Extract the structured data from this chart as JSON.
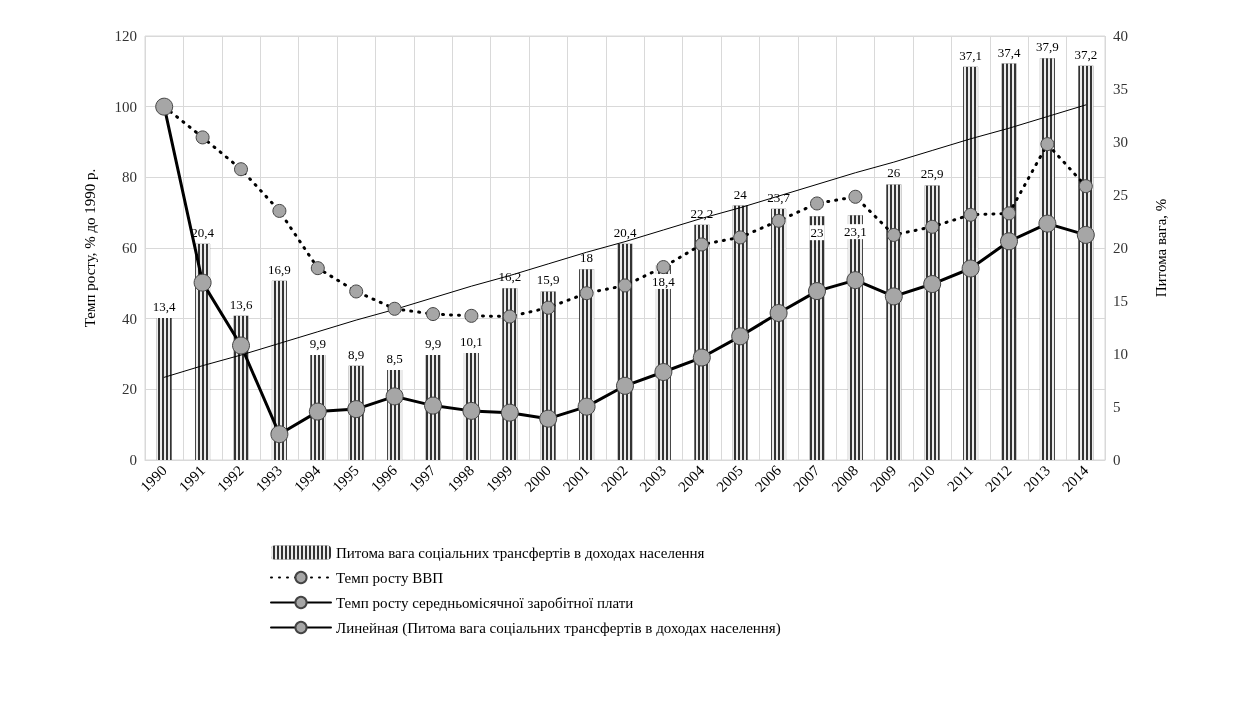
{
  "chart_data": {
    "type": "bar",
    "categories": [
      "1990",
      "1991",
      "1992",
      "1993",
      "1994",
      "1995",
      "1996",
      "1997",
      "1998",
      "1999",
      "2000",
      "2001",
      "2002",
      "2003",
      "2004",
      "2005",
      "2006",
      "2007",
      "2008",
      "2009",
      "2010",
      "2011",
      "2012",
      "2013",
      "2014"
    ],
    "ylabel": "Темп росту, % до 1990 р.",
    "y2label": "Питома вага, %",
    "ylim": [
      0,
      120
    ],
    "yticks": [
      0,
      20,
      40,
      60,
      80,
      100,
      120
    ],
    "y2lim": [
      0,
      40
    ],
    "y2ticks": [
      0,
      5,
      10,
      15,
      20,
      25,
      30,
      35,
      40
    ],
    "grid": true,
    "legend": "bottom",
    "series": [
      {
        "name": "Питома вага соціальних трансфертів в доходах населення",
        "axis": "y2",
        "color": "#333333",
        "values": [
          13.4,
          20.4,
          13.6,
          16.9,
          9.9,
          8.9,
          8.5,
          9.9,
          10.1,
          16.2,
          15.9,
          18,
          20.4,
          18.4,
          22.2,
          24,
          23.7,
          23,
          23.1,
          26,
          25.9,
          37.1,
          37.4,
          37.9,
          37.2
        ],
        "value_labels": [
          "13,4",
          "20,4",
          "13,6",
          "16,9",
          "9,9",
          "8,9",
          "8,5",
          "9,9",
          "10,1",
          "16,2",
          "15,9",
          "18",
          "20,4",
          "18,4",
          "22,2",
          "24",
          "23,7",
          "23",
          "23,1",
          "26",
          "25,9",
          "37,1",
          "37,4",
          "37,9",
          "37,2"
        ]
      },
      {
        "name": "Темп росту ВВП",
        "type": "line",
        "line_style": "dotted",
        "marker": "circle",
        "color": "#000000",
        "values": [
          100,
          91.3,
          82.3,
          70.5,
          54.3,
          47.7,
          42.8,
          41.3,
          40.8,
          40.6,
          43.1,
          47.2,
          49.4,
          54.6,
          61,
          63,
          67.7,
          72.6,
          74.5,
          63.7,
          66,
          69.4,
          69.8,
          89.4,
          77.5
        ]
      },
      {
        "name": "Темп росту середньомісячної заробітної плати",
        "type": "line",
        "line_style": "solid",
        "marker": "circle",
        "color": "#000000",
        "values": [
          100,
          50.2,
          32.4,
          7.3,
          13.7,
          14.4,
          18,
          15.4,
          13.9,
          13.4,
          11.7,
          15.1,
          21,
          24.9,
          29,
          35,
          41.6,
          47.8,
          50.9,
          46.3,
          49.8,
          54.2,
          61.9,
          66.9,
          63.7
        ]
      },
      {
        "name": "Линейная (Питома вага соціальних трансфертів в доходах населення)",
        "type": "line",
        "axis": "y2",
        "line_style": "solid",
        "marker": "none",
        "color": "#000000",
        "values": [
          7.8,
          8.9,
          9.9,
          11,
          12.1,
          13.2,
          14.2,
          15.3,
          16.4,
          17.4,
          18.5,
          19.6,
          20.6,
          21.7,
          22.8,
          23.8,
          24.9,
          26,
          27.1,
          28.1,
          29.2,
          30.3,
          31.3,
          32.4,
          33.5
        ]
      }
    ]
  }
}
